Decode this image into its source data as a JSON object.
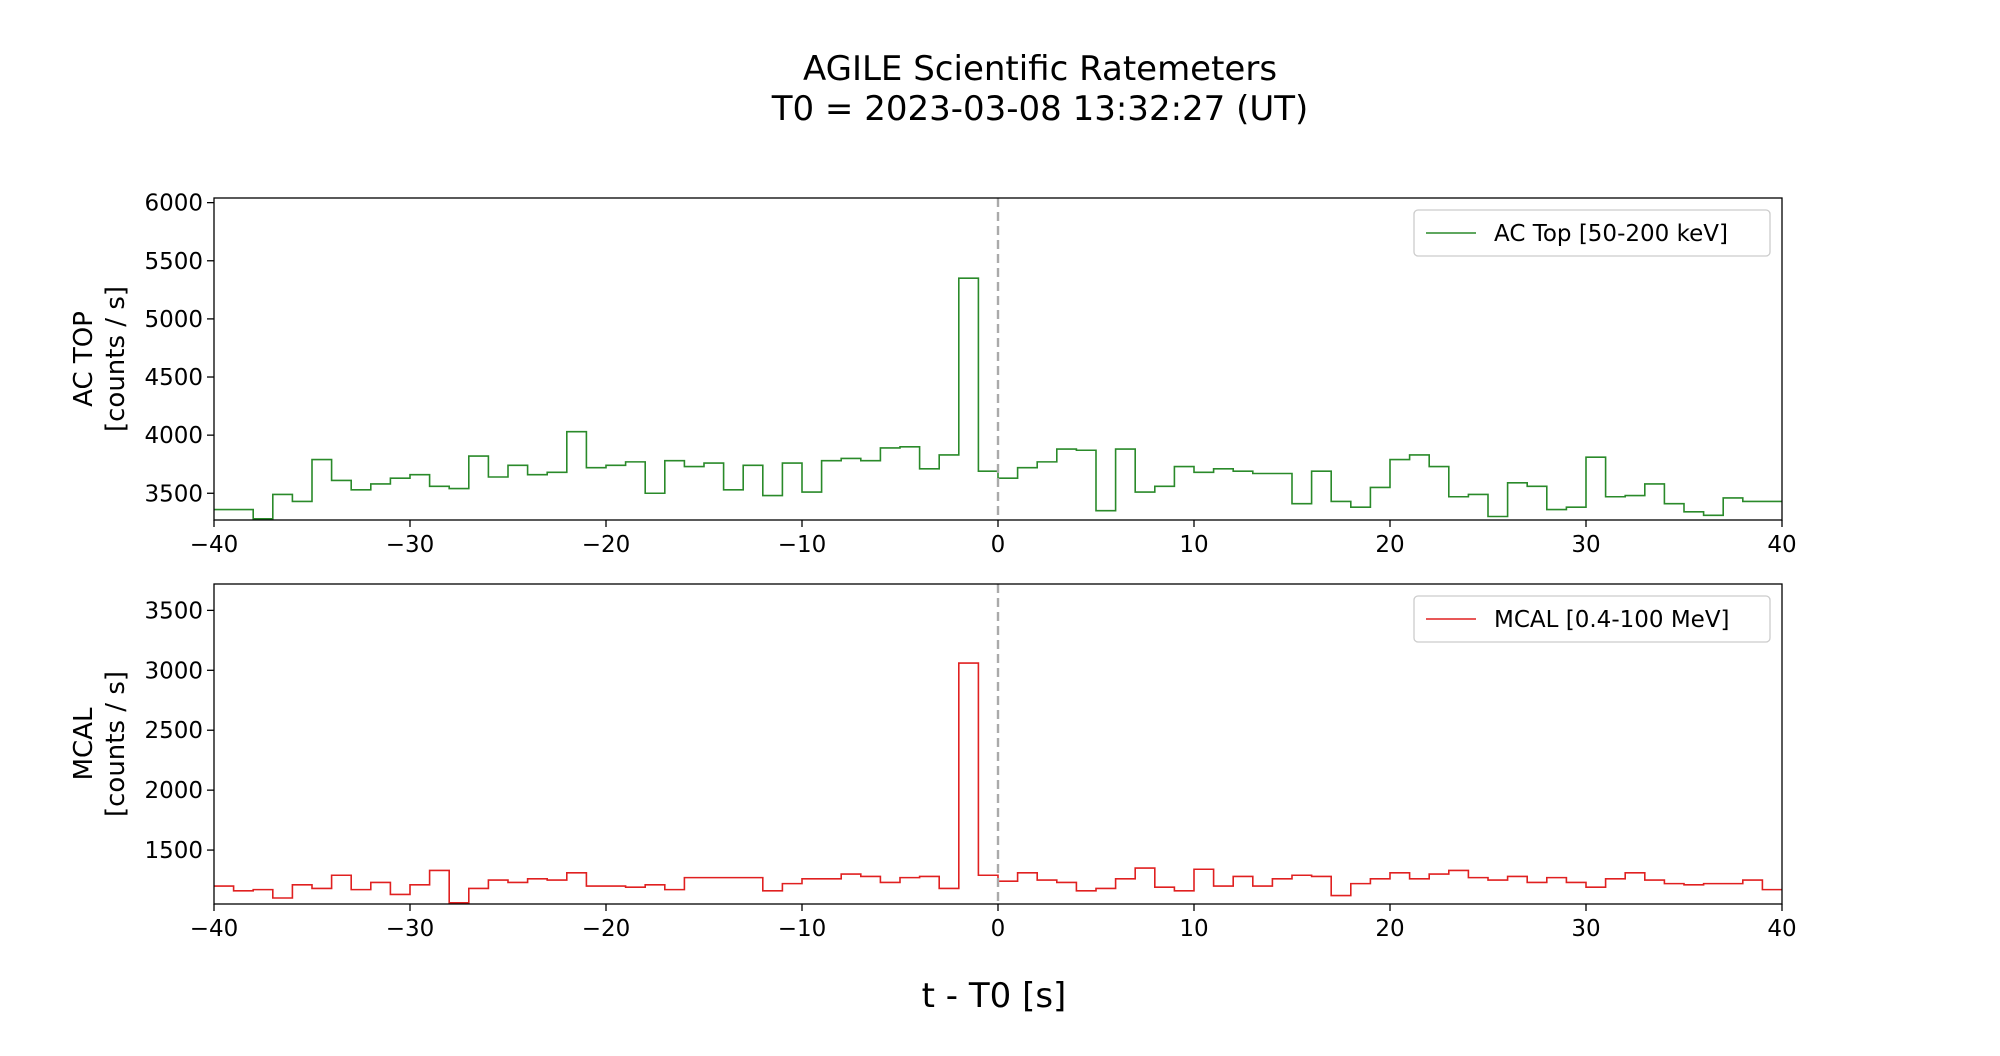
{
  "figure": {
    "title_line1": "AGILE Scientific Ratemeters",
    "title_line2": "T0 = 2023-03-08 13:32:27 (UT)",
    "xlabel": "t - T0 [s]"
  },
  "chart_data": [
    {
      "type": "line",
      "drawstyle": "steps",
      "title": "",
      "xlabel": "",
      "ylabel_line1": "AC TOP",
      "ylabel_line2": "[counts / s]",
      "xlim": [
        -40,
        40
      ],
      "ylim": [
        3270,
        6040
      ],
      "xticks": [
        -40,
        -30,
        -20,
        -10,
        0,
        10,
        20,
        30,
        40
      ],
      "xtick_labels": [
        "−40",
        "−30",
        "−20",
        "−10",
        "0",
        "10",
        "20",
        "30",
        "40"
      ],
      "yticks": [
        3500,
        4000,
        4500,
        5000,
        5500,
        6000
      ],
      "ytick_labels": [
        "3500",
        "4000",
        "4500",
        "5000",
        "5500",
        "6000"
      ],
      "grid": false,
      "legend_position": "top-right",
      "vline_x": 0,
      "vline_color": "#aaaaaa",
      "series": [
        {
          "name": "AC Top [50-200 keV]",
          "color": "#2a8a2a",
          "bin_width": 1,
          "x": [
            -40,
            -39,
            -38,
            -37,
            -36,
            -35,
            -34,
            -33,
            -32,
            -31,
            -30,
            -29,
            -28,
            -27,
            -26,
            -25,
            -24,
            -23,
            -22,
            -21,
            -20,
            -19,
            -18,
            -17,
            -16,
            -15,
            -14,
            -13,
            -12,
            -11,
            -10,
            -9,
            -8,
            -7,
            -6,
            -5,
            -4,
            -3,
            -2,
            -1,
            0,
            1,
            2,
            3,
            4,
            5,
            6,
            7,
            8,
            9,
            10,
            11,
            12,
            13,
            14,
            15,
            16,
            17,
            18,
            19,
            20,
            21,
            22,
            23,
            24,
            25,
            26,
            27,
            28,
            29,
            30,
            31,
            32,
            33,
            34,
            35,
            36,
            37,
            38,
            39
          ],
          "values": [
            3360,
            3360,
            3280,
            3490,
            3430,
            3790,
            3610,
            3530,
            3580,
            3630,
            3660,
            3560,
            3540,
            3820,
            3640,
            3740,
            3660,
            3680,
            4030,
            3720,
            3740,
            3770,
            3500,
            3780,
            3730,
            3760,
            3530,
            3740,
            3480,
            3760,
            3510,
            3780,
            3800,
            3780,
            3890,
            3900,
            3710,
            3830,
            5350,
            3690,
            3630,
            3720,
            3770,
            3880,
            3870,
            3350,
            3880,
            3510,
            3560,
            3730,
            3680,
            3710,
            3690,
            3670,
            3670,
            3410,
            3690,
            3430,
            3380,
            3550,
            3790,
            3830,
            3730,
            3470,
            3490,
            3300,
            3590,
            3560,
            3360,
            3380,
            3810,
            3470,
            3480,
            3580,
            3410,
            3340,
            3310,
            3460,
            3430,
            3430
          ]
        }
      ]
    },
    {
      "type": "line",
      "drawstyle": "steps",
      "title": "",
      "xlabel": "",
      "ylabel_line1": "MCAL",
      "ylabel_line2": "[counts / s]",
      "xlim": [
        -40,
        40
      ],
      "ylim": [
        1050,
        3720
      ],
      "xticks": [
        -40,
        -30,
        -20,
        -10,
        0,
        10,
        20,
        30,
        40
      ],
      "xtick_labels": [
        "−40",
        "−30",
        "−20",
        "−10",
        "0",
        "10",
        "20",
        "30",
        "40"
      ],
      "yticks": [
        1500,
        2000,
        2500,
        3000,
        3500
      ],
      "ytick_labels": [
        "1500",
        "2000",
        "2500",
        "3000",
        "3500"
      ],
      "grid": false,
      "legend_position": "top-right",
      "vline_x": 0,
      "vline_color": "#aaaaaa",
      "series": [
        {
          "name": "MCAL [0.4-100 MeV]",
          "color": "#e02020",
          "bin_width": 1,
          "x": [
            -40,
            -39,
            -38,
            -37,
            -36,
            -35,
            -34,
            -33,
            -32,
            -31,
            -30,
            -29,
            -28,
            -27,
            -26,
            -25,
            -24,
            -23,
            -22,
            -21,
            -20,
            -19,
            -18,
            -17,
            -16,
            -15,
            -14,
            -13,
            -12,
            -11,
            -10,
            -9,
            -8,
            -7,
            -6,
            -5,
            -4,
            -3,
            -2,
            -1,
            0,
            1,
            2,
            3,
            4,
            5,
            6,
            7,
            8,
            9,
            10,
            11,
            12,
            13,
            14,
            15,
            16,
            17,
            18,
            19,
            20,
            21,
            22,
            23,
            24,
            25,
            26,
            27,
            28,
            29,
            30,
            31,
            32,
            33,
            34,
            35,
            36,
            37,
            38,
            39
          ],
          "values": [
            1200,
            1160,
            1170,
            1100,
            1210,
            1180,
            1290,
            1170,
            1230,
            1130,
            1210,
            1330,
            1060,
            1180,
            1250,
            1230,
            1260,
            1250,
            1310,
            1200,
            1200,
            1190,
            1210,
            1170,
            1270,
            1270,
            1270,
            1270,
            1160,
            1220,
            1260,
            1260,
            1300,
            1280,
            1230,
            1270,
            1280,
            1180,
            3060,
            1290,
            1240,
            1310,
            1250,
            1230,
            1160,
            1180,
            1260,
            1350,
            1190,
            1160,
            1340,
            1200,
            1280,
            1200,
            1260,
            1290,
            1280,
            1120,
            1220,
            1260,
            1310,
            1260,
            1300,
            1330,
            1270,
            1250,
            1280,
            1230,
            1270,
            1230,
            1190,
            1260,
            1310,
            1250,
            1220,
            1210,
            1220,
            1220,
            1250,
            1170
          ]
        }
      ]
    }
  ]
}
